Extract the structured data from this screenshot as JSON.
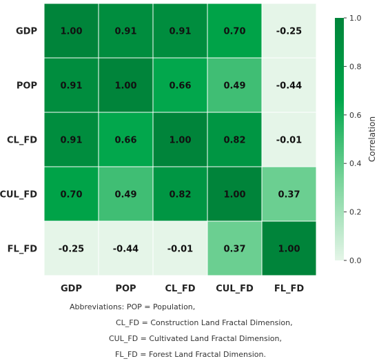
{
  "chart_data": {
    "type": "heatmap",
    "rows": [
      "GDP",
      "POP",
      "CL_FD",
      "CUL_FD",
      "FL_FD"
    ],
    "columns": [
      "GDP",
      "POP",
      "CL_FD",
      "CUL_FD",
      "FL_FD"
    ],
    "values": [
      [
        1.0,
        0.91,
        0.91,
        0.7,
        -0.25
      ],
      [
        0.91,
        1.0,
        0.66,
        0.49,
        -0.44
      ],
      [
        0.91,
        0.66,
        1.0,
        0.82,
        -0.01
      ],
      [
        0.7,
        0.49,
        0.82,
        1.0,
        0.37
      ],
      [
        -0.25,
        -0.44,
        -0.01,
        0.37,
        1.0
      ]
    ],
    "colorbar": {
      "label": "Correlation",
      "range": [
        0.0,
        1.0
      ],
      "ticks": [
        "0.0",
        "0.2",
        "0.4",
        "0.6",
        "0.8",
        "1.0"
      ],
      "colors": [
        "#e5f5e8",
        "#78d49a",
        "#00a64a",
        "#00843a"
      ]
    }
  },
  "abbreviations": {
    "line1": "Abbreviations: POP = Population,",
    "line2": "CL_FD = Construction Land Fractal Dimension,",
    "line3": "CUL_FD = Cultivated Land Fractal Dimension,",
    "line4": "FL_FD = Forest Land Fractal Dimension."
  }
}
